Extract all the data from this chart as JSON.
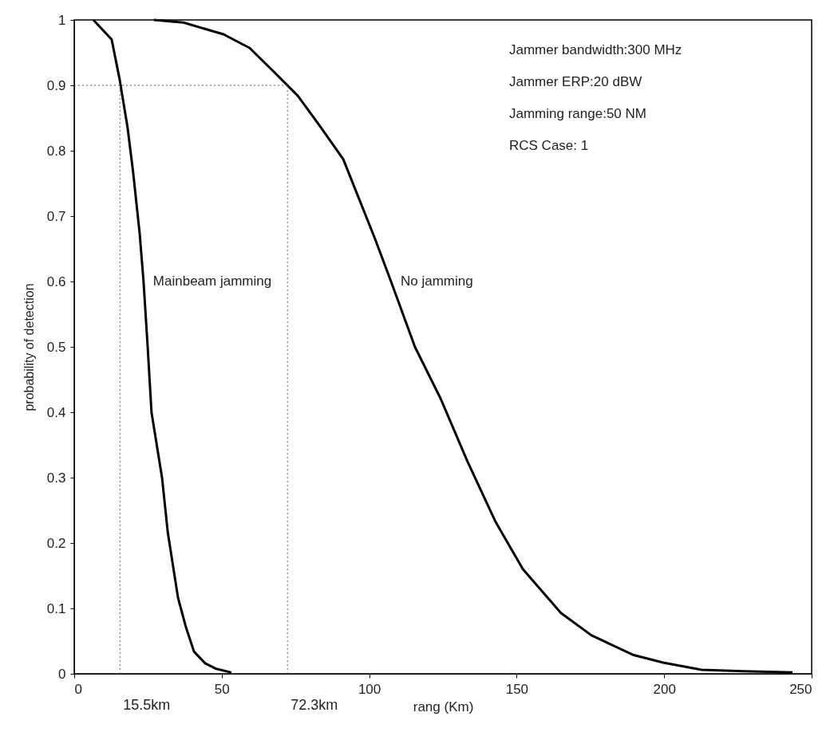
{
  "chart_data": {
    "type": "line",
    "xlabel": "rang (Km)",
    "ylabel": "probability of detection",
    "xlim": [
      0,
      250
    ],
    "xticks": [
      0,
      50,
      100,
      150,
      200,
      250
    ],
    "ylim": [
      0,
      1
    ],
    "yticks": [
      0,
      0.1,
      0.2,
      0.3,
      0.4,
      0.5,
      0.6,
      0.7,
      0.8,
      0.9,
      1
    ],
    "grid": false,
    "line_style": "solid",
    "marker": "none",
    "series": [
      {
        "name": "Mainbeam jamming",
        "color": "#000000",
        "x": [
          6.5,
          12.7,
          15.4,
          18.1,
          20.0,
          22.2,
          23.5,
          24.9,
          26.2,
          29.8,
          31.7,
          33.5,
          35.2,
          37.9,
          40.6,
          44.4,
          47.9,
          53.3
        ],
        "values": [
          1.0,
          0.97,
          0.909,
          0.835,
          0.766,
          0.673,
          0.6,
          0.5,
          0.4,
          0.299,
          0.217,
          0.165,
          0.116,
          0.071,
          0.034,
          0.016,
          0.008,
          0.002
        ]
      },
      {
        "name": "No jamming",
        "color": "#000000",
        "x": [
          27,
          37,
          50.6,
          59.5,
          67.6,
          75.8,
          83.1,
          91.2,
          102,
          107.4,
          115.5,
          124.2,
          133.4,
          142.9,
          152.1,
          165,
          175.3,
          189.4,
          199.7,
          212.7,
          226.7,
          243.5
        ],
        "values": [
          1.0,
          0.996,
          0.978,
          0.957,
          0.921,
          0.884,
          0.839,
          0.787,
          0.665,
          0.6,
          0.5,
          0.421,
          0.324,
          0.232,
          0.16,
          0.093,
          0.059,
          0.029,
          0.017,
          0.006,
          0.004,
          0.002
        ]
      }
    ],
    "ref_lines": [
      {
        "axis": "x",
        "value": 15.5,
        "label": "15.5km",
        "line_style": "dotted",
        "color": "#666666"
      },
      {
        "axis": "x",
        "value": 72.3,
        "label": "72.3km",
        "line_style": "dotted",
        "color": "#666666"
      },
      {
        "axis": "y",
        "value": 0.9,
        "label": null,
        "line_style": "dotted",
        "color": "#666666"
      }
    ],
    "annotations": [
      "Jammer bandwidth:300 MHz",
      "Jammer ERP:20 dBW",
      "Jamming range:50 NM",
      "RCS Case: 1"
    ]
  }
}
